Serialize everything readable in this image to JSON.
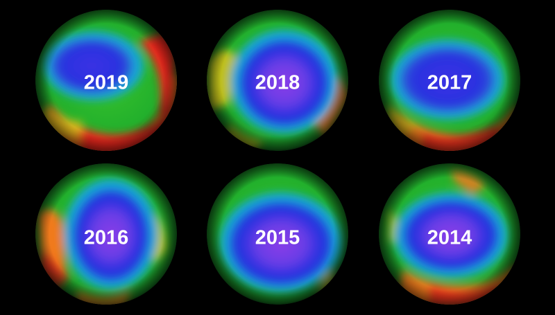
{
  "globes": [
    {
      "year": "2019",
      "variant": "2019"
    },
    {
      "year": "2018",
      "variant": "2018"
    },
    {
      "year": "2017",
      "variant": "2017"
    },
    {
      "year": "2016",
      "variant": "2016"
    },
    {
      "year": "2015",
      "variant": "2015"
    },
    {
      "year": "2014",
      "variant": "2014"
    }
  ],
  "colors": {
    "background": "#000000",
    "green": "#22b830",
    "light_green": "#7cd11e",
    "yellow": "#d9c21a",
    "orange": "#f07a1e",
    "red": "#e8251a",
    "cyan": "#16a9d8",
    "blue": "#1f2fe0",
    "violet": "#7a3de6",
    "label": "#ffffff"
  }
}
